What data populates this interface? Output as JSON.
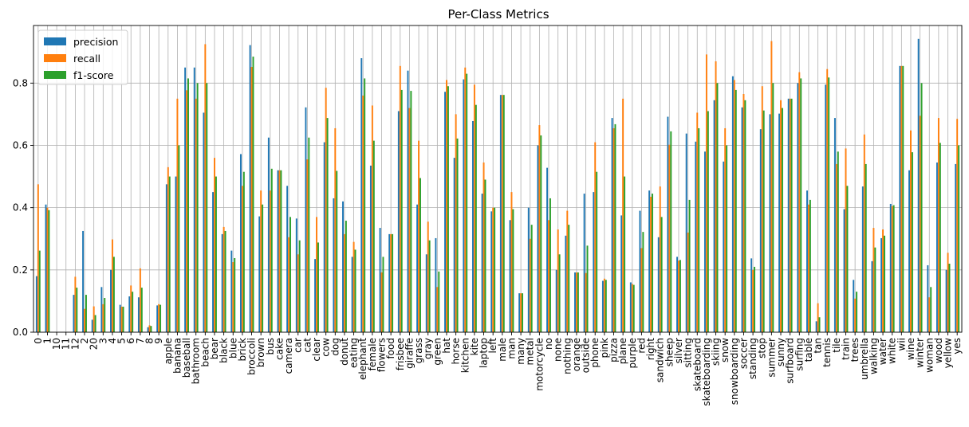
{
  "chart_data": {
    "type": "bar",
    "title": "Per-Class Metrics",
    "xlabel": "",
    "ylabel": "",
    "ylim": [
      0,
      0.985
    ],
    "yticks": [
      "0.0",
      "0.2",
      "0.4",
      "0.6",
      "0.8"
    ],
    "grid": true,
    "legend_position": "top-left",
    "categories": [
      "0",
      "1",
      "10",
      "11",
      "12",
      "2",
      "20",
      "3",
      "4",
      "5",
      "6",
      "7",
      "8",
      "9",
      "apple",
      "banana",
      "baseball",
      "bathroom",
      "beach",
      "bear",
      "black",
      "blue",
      "brick",
      "broccoli",
      "brown",
      "bus",
      "cake",
      "camera",
      "car",
      "cat",
      "clear",
      "cow",
      "dog",
      "donut",
      "eating",
      "elephant",
      "female",
      "flowers",
      "food",
      "frisbee",
      "giraffe",
      "grass",
      "gray",
      "green",
      "hat",
      "horse",
      "kitchen",
      "kite",
      "laptop",
      "left",
      "male",
      "man",
      "many",
      "metal",
      "motorcycle",
      "no",
      "none",
      "nothing",
      "orange",
      "outside",
      "phone",
      "pink",
      "pizza",
      "plane",
      "purple",
      "red",
      "right",
      "sandwich",
      "sheep",
      "silver",
      "sitting",
      "skateboard",
      "skateboarding",
      "skiing",
      "snow",
      "snowboarding",
      "soccer",
      "standing",
      "stop",
      "summer",
      "sunny",
      "surfboard",
      "surfing",
      "table",
      "tan",
      "tennis",
      "tile",
      "train",
      "trees",
      "umbrella",
      "walking",
      "water",
      "white",
      "wii",
      "wine",
      "winter",
      "woman",
      "wood",
      "yellow",
      "yes"
    ],
    "series": [
      {
        "name": "precision",
        "color": "#1f77b4",
        "values": [
          0.18,
          0.41,
          0,
          0,
          0.12,
          0.325,
          0.04,
          0.145,
          0.2,
          0.088,
          0.115,
          0.112,
          0.016,
          0.086,
          0.475,
          0.5,
          0.85,
          0.85,
          0.705,
          0.45,
          0.315,
          0.262,
          0.572,
          0.922,
          0.372,
          0.625,
          0.52,
          0.47,
          0.365,
          0.722,
          0.235,
          0.61,
          0.43,
          0.42,
          0.242,
          0.88,
          0.535,
          0.335,
          0.315,
          0.71,
          0.84,
          0.41,
          0.25,
          0.302,
          0.772,
          0.56,
          0.812,
          0.678,
          0.445,
          0.388,
          0.762,
          0.36,
          0.125,
          0.4,
          0.6,
          0.528,
          0.2,
          0.31,
          0.192,
          0.445,
          0.45,
          0.165,
          0.688,
          0.375,
          0.16,
          0.39,
          0.455,
          0.305,
          0.692,
          0.242,
          0.638,
          0.612,
          0.58,
          0.745,
          0.548,
          0.822,
          0.722,
          0.237,
          0.652,
          0.7,
          0.702,
          0.75,
          0.8,
          0.455,
          0.035,
          0.795,
          0.688,
          0.395,
          0.168,
          0.468,
          0.228,
          0.302,
          0.412,
          0.855,
          0.52,
          0.942,
          0.215,
          0.545,
          0.2,
          0.54
        ]
      },
      {
        "name": "recall",
        "color": "#ff7f0e",
        "values": [
          0.475,
          0.4,
          0,
          0,
          0.178,
          0.075,
          0.083,
          0.09,
          0.298,
          0.082,
          0.15,
          0.205,
          0.022,
          0.09,
          0.53,
          0.75,
          0.777,
          0.75,
          0.925,
          0.56,
          0.338,
          0.225,
          0.47,
          0.852,
          0.455,
          0.455,
          0.52,
          0.305,
          0.25,
          0.555,
          0.37,
          0.785,
          0.655,
          0.315,
          0.29,
          0.76,
          0.728,
          0.192,
          0.315,
          0.855,
          0.72,
          0.615,
          0.355,
          0.145,
          0.81,
          0.7,
          0.85,
          0.795,
          0.545,
          0.4,
          0.762,
          0.45,
          0.125,
          0.3,
          0.665,
          0.36,
          0.33,
          0.39,
          0.192,
          0.19,
          0.61,
          0.172,
          0.655,
          0.75,
          0.155,
          0.27,
          0.435,
          0.468,
          0.602,
          0.23,
          0.32,
          0.705,
          0.892,
          0.87,
          0.655,
          0.81,
          0.765,
          0.2,
          0.79,
          0.935,
          0.745,
          0.75,
          0.835,
          0.41,
          0.093,
          0.845,
          0.54,
          0.59,
          0.108,
          0.635,
          0.335,
          0.33,
          0.405,
          0.855,
          0.648,
          0.695,
          0.112,
          0.688,
          0.255,
          0.685
        ]
      },
      {
        "name": "f1-score",
        "color": "#2ca02c",
        "values": [
          0.262,
          0.392,
          0,
          0,
          0.143,
          0.12,
          0.055,
          0.11,
          0.242,
          0.082,
          0.13,
          0.143,
          0.02,
          0.088,
          0.5,
          0.6,
          0.815,
          0.8,
          0.8,
          0.5,
          0.325,
          0.238,
          0.515,
          0.885,
          0.41,
          0.525,
          0.52,
          0.37,
          0.295,
          0.625,
          0.288,
          0.688,
          0.518,
          0.358,
          0.265,
          0.815,
          0.615,
          0.242,
          0.315,
          0.778,
          0.775,
          0.495,
          0.295,
          0.195,
          0.79,
          0.622,
          0.83,
          0.73,
          0.49,
          0.4,
          0.762,
          0.395,
          0.125,
          0.345,
          0.632,
          0.43,
          0.25,
          0.345,
          0.192,
          0.278,
          0.515,
          0.168,
          0.668,
          0.5,
          0.152,
          0.322,
          0.445,
          0.37,
          0.645,
          0.232,
          0.425,
          0.655,
          0.71,
          0.8,
          0.6,
          0.778,
          0.745,
          0.21,
          0.712,
          0.8,
          0.72,
          0.75,
          0.815,
          0.425,
          0.048,
          0.818,
          0.58,
          0.47,
          0.13,
          0.54,
          0.272,
          0.31,
          0.408,
          0.855,
          0.578,
          0.8,
          0.145,
          0.608,
          0.22,
          0.6
        ]
      }
    ]
  }
}
